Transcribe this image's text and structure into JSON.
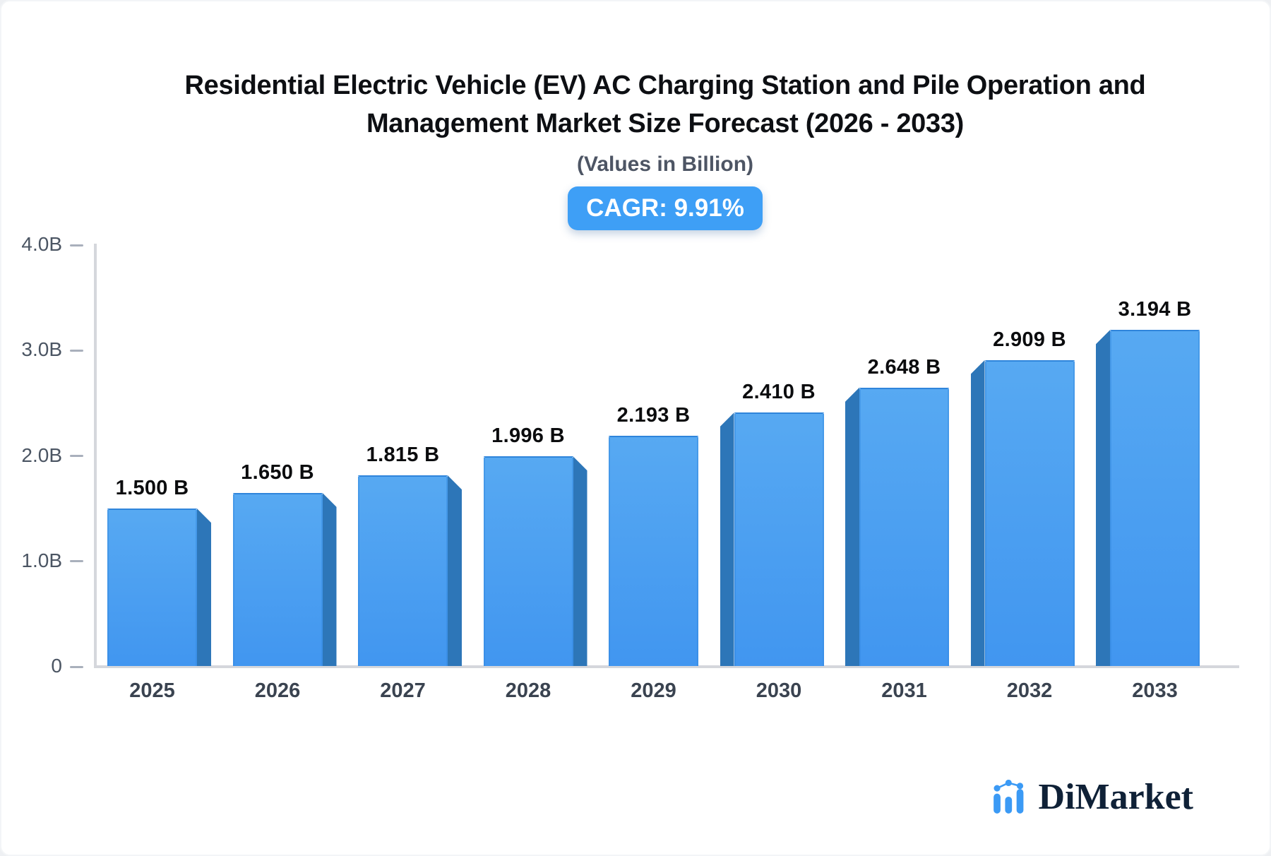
{
  "header": {
    "title_line1": "Residential Electric Vehicle (EV) AC Charging Station and Pile Operation and",
    "title_line2": "Management Market Size Forecast (2026 - 2033)",
    "subtitle": "(Values in Billion)",
    "cagr_label": "CAGR: 9.91%"
  },
  "chart_data": {
    "type": "bar",
    "title": "Residential Electric Vehicle (EV) AC Charging Station and Pile Operation and Management Market Size Forecast (2026 - 2033)",
    "subtitle": "(Values in Billion)",
    "cagr_percent": 9.91,
    "categories": [
      "2025",
      "2026",
      "2027",
      "2028",
      "2029",
      "2030",
      "2031",
      "2032",
      "2033"
    ],
    "values": [
      1.5,
      1.65,
      1.815,
      1.996,
      2.193,
      2.41,
      2.648,
      2.909,
      3.194
    ],
    "value_labels": [
      "1.500 B",
      "1.650 B",
      "1.815 B",
      "1.996 B",
      "2.193 B",
      "2.410 B",
      "2.648 B",
      "2.909 B",
      "3.194 B"
    ],
    "unit": "Billion",
    "xlabel": "",
    "ylabel": "",
    "ylim": [
      0,
      4
    ],
    "grid": false,
    "legend": false,
    "yticks": [
      {
        "label": "4.0B",
        "value": 4.0
      },
      {
        "label": "3.0B",
        "value": 3.0
      },
      {
        "label": "2.0B",
        "value": 2.0
      },
      {
        "label": "1.0B",
        "value": 1.0
      },
      {
        "label": "0",
        "value": 0.0
      }
    ],
    "colors": {
      "bar_face_top": "#57a9f2",
      "bar_face_bottom": "#4196f0",
      "bar_face_border": "#2f85db",
      "bar_side": "#2d76b8",
      "axis": "#d5d7dc",
      "tick": "#a9b0bc",
      "y_label": "#4b5563",
      "x_label": "#3a4350",
      "value_label": "#0b0c0e",
      "badge_bg": "#3e9ff6",
      "badge_text": "#ffffff"
    }
  },
  "logo": {
    "text": "DiMarket",
    "icon": "bar-line-chart-icon",
    "icon_color": "#3b9af5",
    "text_color": "#0f2137"
  }
}
